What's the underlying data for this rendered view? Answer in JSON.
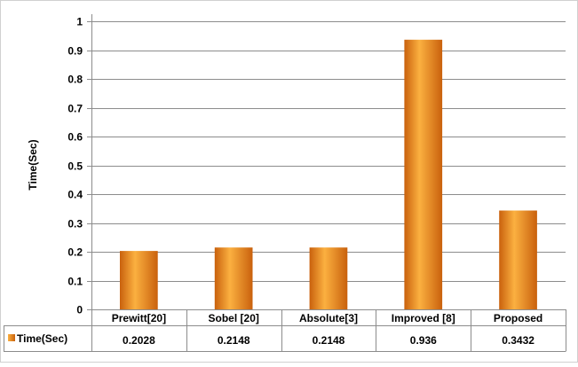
{
  "chart_data": {
    "type": "bar",
    "title": "",
    "xlabel": "",
    "ylabel": "Time(Sec)",
    "ylim": [
      0,
      1
    ],
    "yticks": [
      "0",
      "0.1",
      "0.2",
      "0.3",
      "0.4",
      "0.5",
      "0.6",
      "0.7",
      "0.8",
      "0.9",
      "1"
    ],
    "grid": true,
    "legend": "data-table-row",
    "categories": [
      "Prewitt[20]",
      "Sobel [20]",
      "Absolute[3]",
      "Improved [8]",
      "Proposed"
    ],
    "series": [
      {
        "name": "Time(Sec)",
        "values": [
          0.2028,
          0.2148,
          0.2148,
          0.936,
          0.3432
        ],
        "value_labels": [
          "0.2028",
          "0.2148",
          "0.2148",
          "0.936",
          "0.3432"
        ],
        "color": "#f28a1c"
      }
    ]
  },
  "colors": {
    "bar_light": "#fbb040",
    "bar_mid": "#f28a1c",
    "bar_dark": "#c9610d",
    "grid": "#8c8c8c",
    "border": "#8c8c8c"
  }
}
